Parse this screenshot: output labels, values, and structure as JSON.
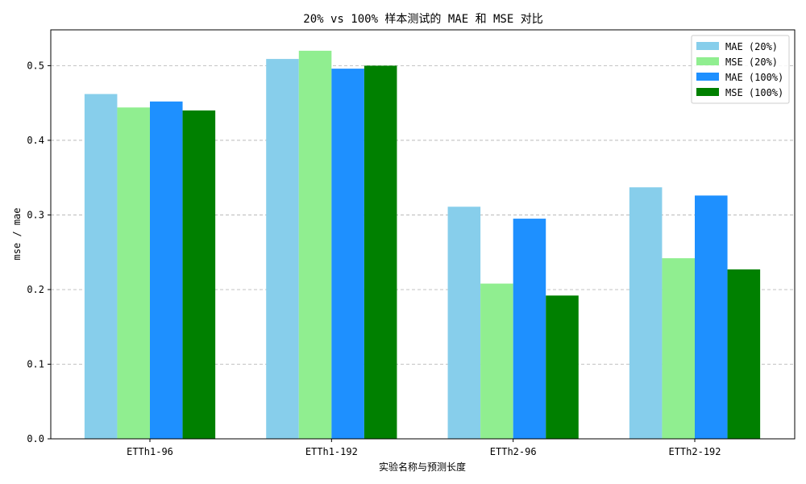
{
  "chart_data": {
    "type": "bar",
    "title": "20% vs 100% 样本测试的 MAE 和 MSE 对比",
    "xlabel": "实验名称与预测长度",
    "ylabel": "mse / mae",
    "categories": [
      "ETTh1-96",
      "ETTh1-192",
      "ETTh2-96",
      "ETTh2-192"
    ],
    "series": [
      {
        "name": "MAE (20%)",
        "color": "#87ceeb",
        "values": [
          0.462,
          0.509,
          0.311,
          0.337
        ]
      },
      {
        "name": "MSE (20%)",
        "color": "#90ee90",
        "values": [
          0.444,
          0.52,
          0.208,
          0.242
        ]
      },
      {
        "name": "MAE (100%)",
        "color": "#1e90ff",
        "values": [
          0.452,
          0.496,
          0.295,
          0.326
        ]
      },
      {
        "name": "MSE (100%)",
        "color": "#008000",
        "values": [
          0.44,
          0.5,
          0.192,
          0.227
        ]
      }
    ],
    "ylim": [
      0,
      0.548
    ],
    "yticks": [
      0.0,
      0.1,
      0.2,
      0.3,
      0.4,
      0.5
    ],
    "ytick_labels": [
      "0.0",
      "0.1",
      "0.2",
      "0.3",
      "0.4",
      "0.5"
    ],
    "grid": "y-dashed",
    "legend_position": "top-right"
  }
}
